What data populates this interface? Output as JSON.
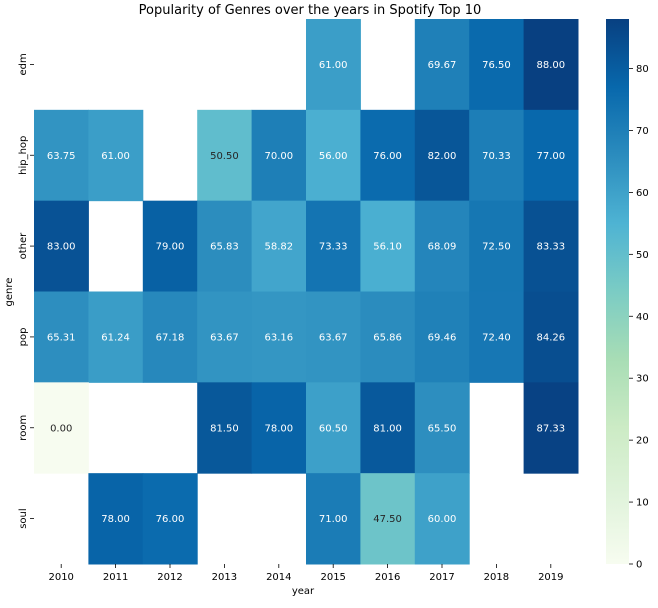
{
  "chart_data": {
    "type": "heatmap",
    "title": "Popularity of Genres over the years in Spotify Top 10",
    "xlabel": "year",
    "ylabel": "genre",
    "x": [
      "2010",
      "2011",
      "2012",
      "2013",
      "2014",
      "2015",
      "2016",
      "2017",
      "2018",
      "2019"
    ],
    "y": [
      "edm",
      "hip_hop",
      "other",
      "pop",
      "room",
      "soul"
    ],
    "values": [
      [
        null,
        null,
        null,
        null,
        null,
        61.0,
        null,
        69.67,
        76.5,
        88.0
      ],
      [
        63.75,
        61.0,
        null,
        50.5,
        70.0,
        56.0,
        76.0,
        82.0,
        70.33,
        77.0
      ],
      [
        83.0,
        null,
        79.0,
        65.83,
        58.82,
        73.33,
        56.1,
        68.09,
        72.5,
        83.33
      ],
      [
        65.31,
        61.24,
        67.18,
        63.67,
        63.16,
        63.67,
        65.86,
        69.46,
        72.4,
        84.26
      ],
      [
        0.0,
        null,
        null,
        81.5,
        78.0,
        60.5,
        81.0,
        65.5,
        null,
        87.33
      ],
      [
        null,
        78.0,
        76.0,
        null,
        null,
        71.0,
        47.5,
        60.0,
        null,
        null
      ]
    ],
    "labels": [
      [
        null,
        null,
        null,
        null,
        null,
        "61.00",
        null,
        "69.67",
        "76.50",
        "88.00"
      ],
      [
        "63.75",
        "61.00",
        null,
        "50.50",
        "70.00",
        "56.00",
        "76.00",
        "82.00",
        "70.33",
        "77.00"
      ],
      [
        "83.00",
        null,
        "79.00",
        "65.83",
        "58.82",
        "73.33",
        "56.10",
        "68.09",
        "72.50",
        "83.33"
      ],
      [
        "65.31",
        "61.24",
        "67.18",
        "63.67",
        "63.16",
        "63.67",
        "65.86",
        "69.46",
        "72.40",
        "84.26"
      ],
      [
        "0.00",
        null,
        null,
        "81.50",
        "78.00",
        "60.50",
        "81.00",
        "65.50",
        null,
        "87.33"
      ],
      [
        null,
        "78.00",
        "76.00",
        null,
        null,
        "71.00",
        "47.50",
        "60.00",
        null,
        null
      ]
    ],
    "vmin": 0,
    "vmax": 88,
    "colormap": "GnBu",
    "colorbar_ticks": [
      0,
      10,
      20,
      30,
      40,
      50,
      60,
      70,
      80
    ],
    "colorbar_tick_labels": [
      "0",
      "10",
      "20",
      "30",
      "40",
      "50",
      "60",
      "70",
      "80"
    ]
  }
}
